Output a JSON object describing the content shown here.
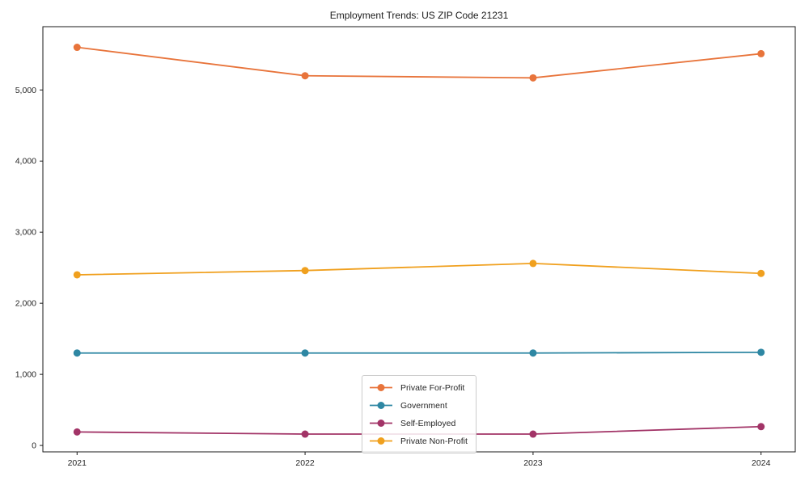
{
  "chart_data": {
    "type": "line",
    "title": "Employment Trends: US ZIP Code 21231",
    "xlabel": "",
    "ylabel": "",
    "categories": [
      "2021",
      "2022",
      "2023",
      "2024"
    ],
    "series": [
      {
        "name": "Private For-Profit",
        "color": "#e8743b",
        "values": [
          5600,
          5200,
          5170,
          5510
        ]
      },
      {
        "name": "Government",
        "color": "#2e87a3",
        "values": [
          1300,
          1300,
          1300,
          1310
        ]
      },
      {
        "name": "Self-Employed",
        "color": "#a23467",
        "values": [
          190,
          160,
          160,
          265
        ]
      },
      {
        "name": "Private Non-Profit",
        "color": "#f0a01e",
        "values": [
          2400,
          2460,
          2560,
          2420
        ]
      }
    ],
    "y_ticks": {
      "values": [
        0,
        1000,
        2000,
        3000,
        4000,
        5000
      ],
      "labels": [
        "0",
        "1,000",
        "2,000",
        "3,000",
        "4,000",
        "5,000"
      ]
    },
    "ylim": [
      -90,
      5890
    ],
    "grid": false,
    "legend_position": "lower center",
    "marker": "circle",
    "line_width": 1.8,
    "marker_radius": 4.5,
    "axis_color": "#1a1a1a",
    "background": "#ffffff"
  }
}
